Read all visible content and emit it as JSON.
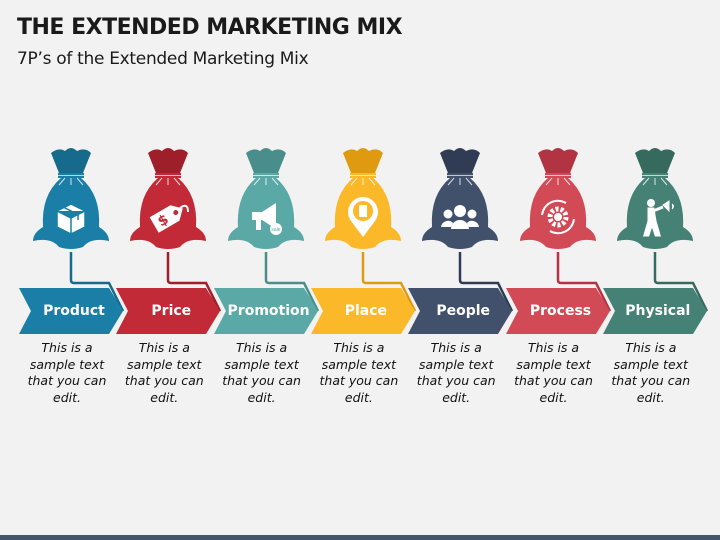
{
  "header": {
    "title": "THE EXTENDED MARKETING MIX",
    "subtitle": "7P’s of the Extended Marketing Mix"
  },
  "items": [
    {
      "label": "Product",
      "text": "This is a sample text that you can edit.",
      "color": "#1a7ea6",
      "dark": "#166a8c",
      "icon": "box-icon"
    },
    {
      "label": "Price",
      "text": "This is a sample text that you can edit.",
      "color": "#c12a36",
      "dark": "#9e1f2a",
      "icon": "price-tag-icon"
    },
    {
      "label": "Promotion",
      "text": "This is a sample text that you can edit.",
      "color": "#5aa9a6",
      "dark": "#4a8e8b",
      "icon": "megaphone-icon"
    },
    {
      "label": "Place",
      "text": "This is a sample text that you can edit.",
      "color": "#fbb829",
      "dark": "#e09a10",
      "icon": "location-pin-icon"
    },
    {
      "label": "People",
      "text": "This is a sample text that you can edit.",
      "color": "#41506b",
      "dark": "#2f3c54",
      "icon": "people-icon"
    },
    {
      "label": "Process",
      "text": "This is a sample text that you can edit.",
      "color": "#d34a57",
      "dark": "#b23442",
      "icon": "gear-cycle-icon"
    },
    {
      "label": "Physical",
      "text": "This is a sample text that you can edit.",
      "color": "#458275",
      "dark": "#376a5f",
      "icon": "person-speaking-icon"
    }
  ]
}
